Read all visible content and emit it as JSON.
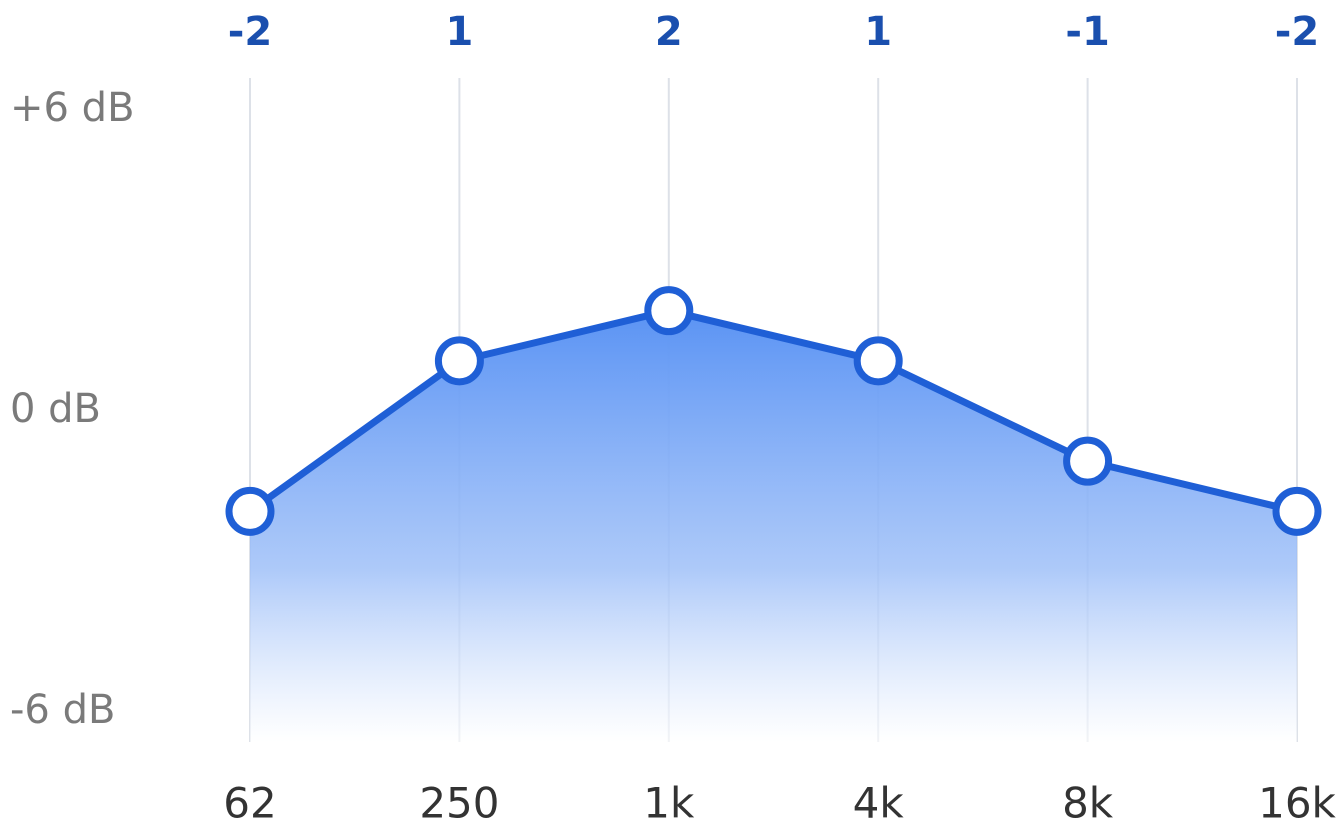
{
  "chart_data": {
    "type": "area",
    "categories": [
      "62",
      "250",
      "1k",
      "4k",
      "8k",
      "16k"
    ],
    "values": [
      -2,
      1,
      2,
      1,
      -1,
      -2
    ],
    "color": "#1f5fd6",
    "ylim": [
      -6,
      6
    ],
    "yticks": [
      {
        "value": 6,
        "label": "+6 dB"
      },
      {
        "value": 0,
        "label": "0 dB"
      },
      {
        "value": -6,
        "label": "-6 dB"
      }
    ],
    "grid": true
  }
}
